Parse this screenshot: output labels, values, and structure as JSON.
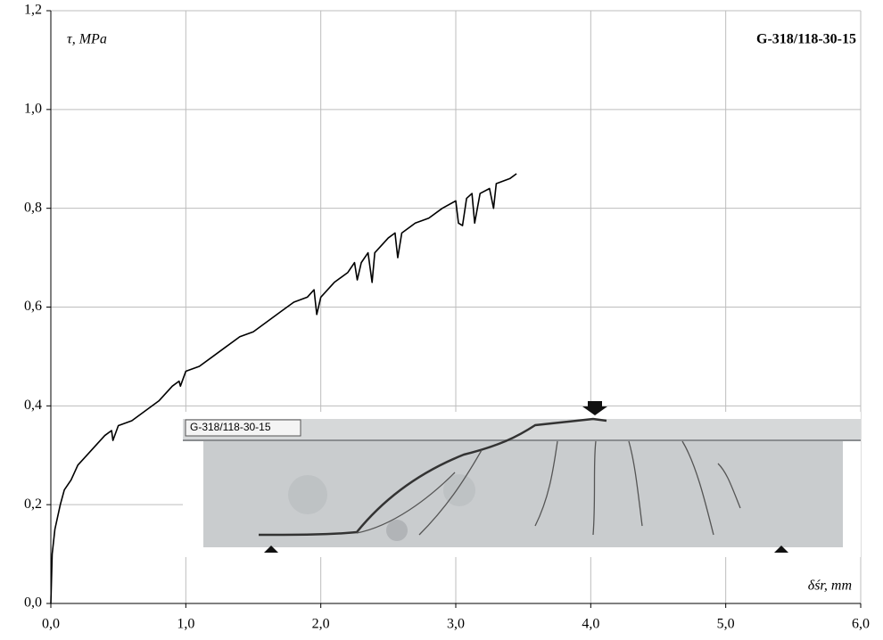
{
  "chart_data": {
    "type": "line",
    "title": "G-318/118-30-15",
    "y_label": "τ, MPa",
    "x_label": "δśr, mm",
    "photo_label": "G-318/118-30-15",
    "x": [
      0,
      0.01,
      0.03,
      0.07,
      0.1,
      0.15,
      0.2,
      0.3,
      0.4,
      0.45,
      0.46,
      0.5,
      0.6,
      0.7,
      0.8,
      0.9,
      0.95,
      0.96,
      1.0,
      1.1,
      1.2,
      1.3,
      1.4,
      1.5,
      1.6,
      1.7,
      1.8,
      1.9,
      1.95,
      1.97,
      2.0,
      2.1,
      2.2,
      2.25,
      2.27,
      2.3,
      2.35,
      2.38,
      2.4,
      2.5,
      2.55,
      2.57,
      2.6,
      2.7,
      2.8,
      2.9,
      3.0,
      3.02,
      3.05,
      3.08,
      3.12,
      3.14,
      3.18,
      3.25,
      3.28,
      3.3,
      3.4,
      3.45
    ],
    "values": [
      0,
      0.1,
      0.15,
      0.2,
      0.23,
      0.25,
      0.28,
      0.31,
      0.34,
      0.35,
      0.33,
      0.36,
      0.37,
      0.39,
      0.41,
      0.44,
      0.45,
      0.44,
      0.47,
      0.48,
      0.5,
      0.52,
      0.54,
      0.55,
      0.57,
      0.59,
      0.61,
      0.62,
      0.635,
      0.585,
      0.62,
      0.65,
      0.67,
      0.69,
      0.655,
      0.69,
      0.71,
      0.65,
      0.71,
      0.74,
      0.75,
      0.7,
      0.75,
      0.77,
      0.78,
      0.8,
      0.815,
      0.77,
      0.765,
      0.82,
      0.83,
      0.77,
      0.83,
      0.84,
      0.8,
      0.85,
      0.86,
      0.87
    ],
    "color": "#000000",
    "xlim": [
      0,
      6
    ],
    "xticks": [
      {
        "value": 0,
        "label": "0,0"
      },
      {
        "value": 1,
        "label": "1,0"
      },
      {
        "value": 2,
        "label": "2,0"
      },
      {
        "value": 3,
        "label": "3,0"
      },
      {
        "value": 4,
        "label": "4,0"
      },
      {
        "value": 5,
        "label": "5,0"
      },
      {
        "value": 6,
        "label": "6,0"
      }
    ],
    "ylim": [
      0,
      1.2
    ],
    "yticks": [
      {
        "value": 0,
        "label": "0,0"
      },
      {
        "value": 0.2,
        "label": "0,2"
      },
      {
        "value": 0.4,
        "label": "0,4"
      },
      {
        "value": 0.6,
        "label": "0,6"
      },
      {
        "value": 0.8,
        "label": "0,8"
      },
      {
        "value": 1.0,
        "label": "1,0"
      },
      {
        "value": 1.2,
        "label": "1,2"
      }
    ],
    "grid": true
  }
}
